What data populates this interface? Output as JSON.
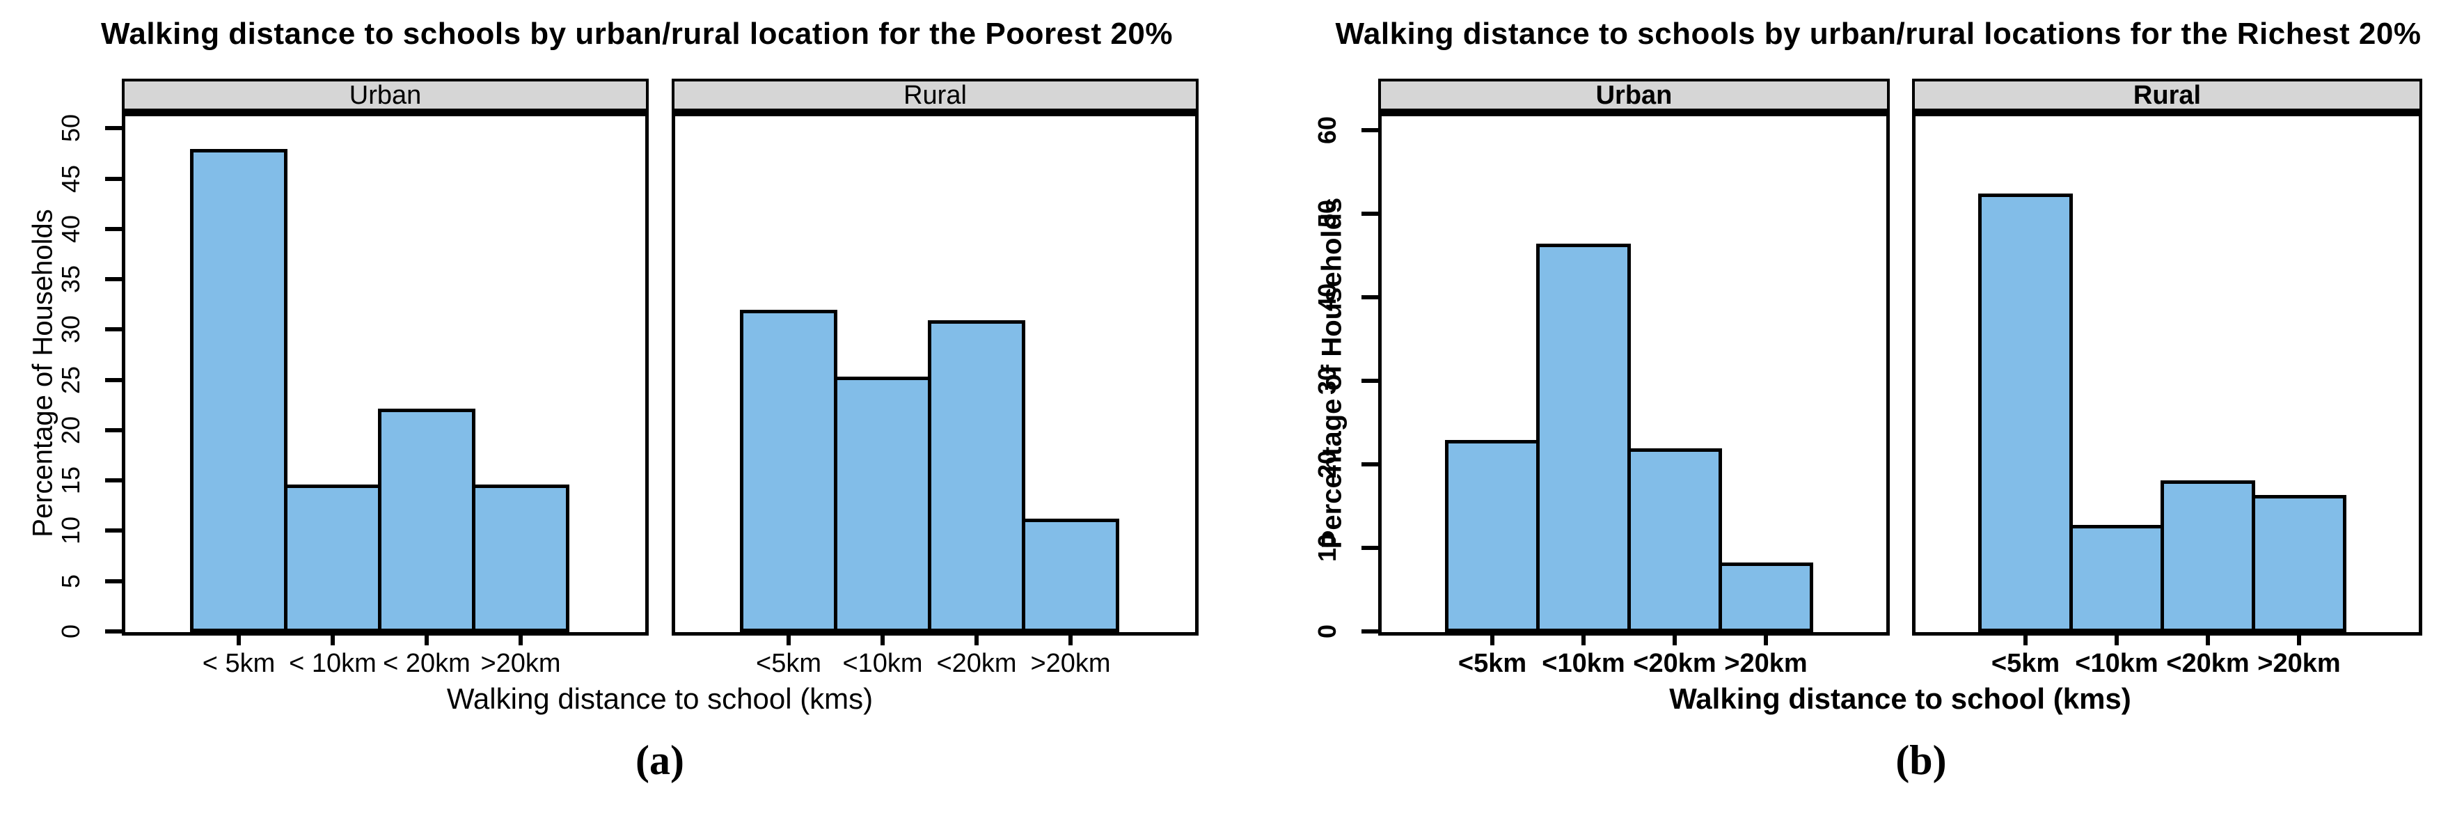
{
  "style": {
    "bar_fill": "#82BDE8",
    "strip_fill": "#D6D6D6",
    "line_color": "#000000",
    "background": "#FFFFFF"
  },
  "chart_data": [
    {
      "type": "bar",
      "caption": "(a)",
      "title": "Walking distance to schools by urban/rural location for the Poorest 20%",
      "xlabel": "Walking distance to school (kms)",
      "ylabel": "Percentage of Households",
      "ylim": [
        0,
        51.2
      ],
      "yticks": [
        0,
        5,
        10,
        15,
        20,
        25,
        30,
        35,
        40,
        45,
        50
      ],
      "grid": false,
      "legend": "none",
      "panels": [
        {
          "label": "Urban",
          "categories": [
            "< 5km",
            "< 10km",
            "< 20km",
            ">20km"
          ],
          "values": [
            48,
            14.7,
            22.2,
            14.7
          ]
        },
        {
          "label": "Rural",
          "categories": [
            "<5km",
            "<10km",
            "<20km",
            ">20km"
          ],
          "values": [
            32,
            25.4,
            31,
            11.3
          ]
        }
      ]
    },
    {
      "type": "bar",
      "caption": "(b)",
      "title": "Walking distance to schools by urban/rural locations for the Richest 20%",
      "xlabel": "Walking distance to school (kms)",
      "ylabel": "Percentage of Households",
      "ylim": [
        0,
        61.7
      ],
      "yticks": [
        0,
        10,
        20,
        30,
        40,
        50,
        60
      ],
      "grid": false,
      "legend": "none",
      "panels": [
        {
          "label": "Urban",
          "categories": [
            "<5km",
            "<10km",
            "<20km",
            ">20km"
          ],
          "values": [
            23,
            46.5,
            22,
            8.3
          ]
        },
        {
          "label": "Rural",
          "categories": [
            "<5km",
            "<10km",
            "<20km",
            ">20km"
          ],
          "values": [
            52.5,
            12.8,
            18.2,
            16.4
          ]
        }
      ]
    }
  ]
}
